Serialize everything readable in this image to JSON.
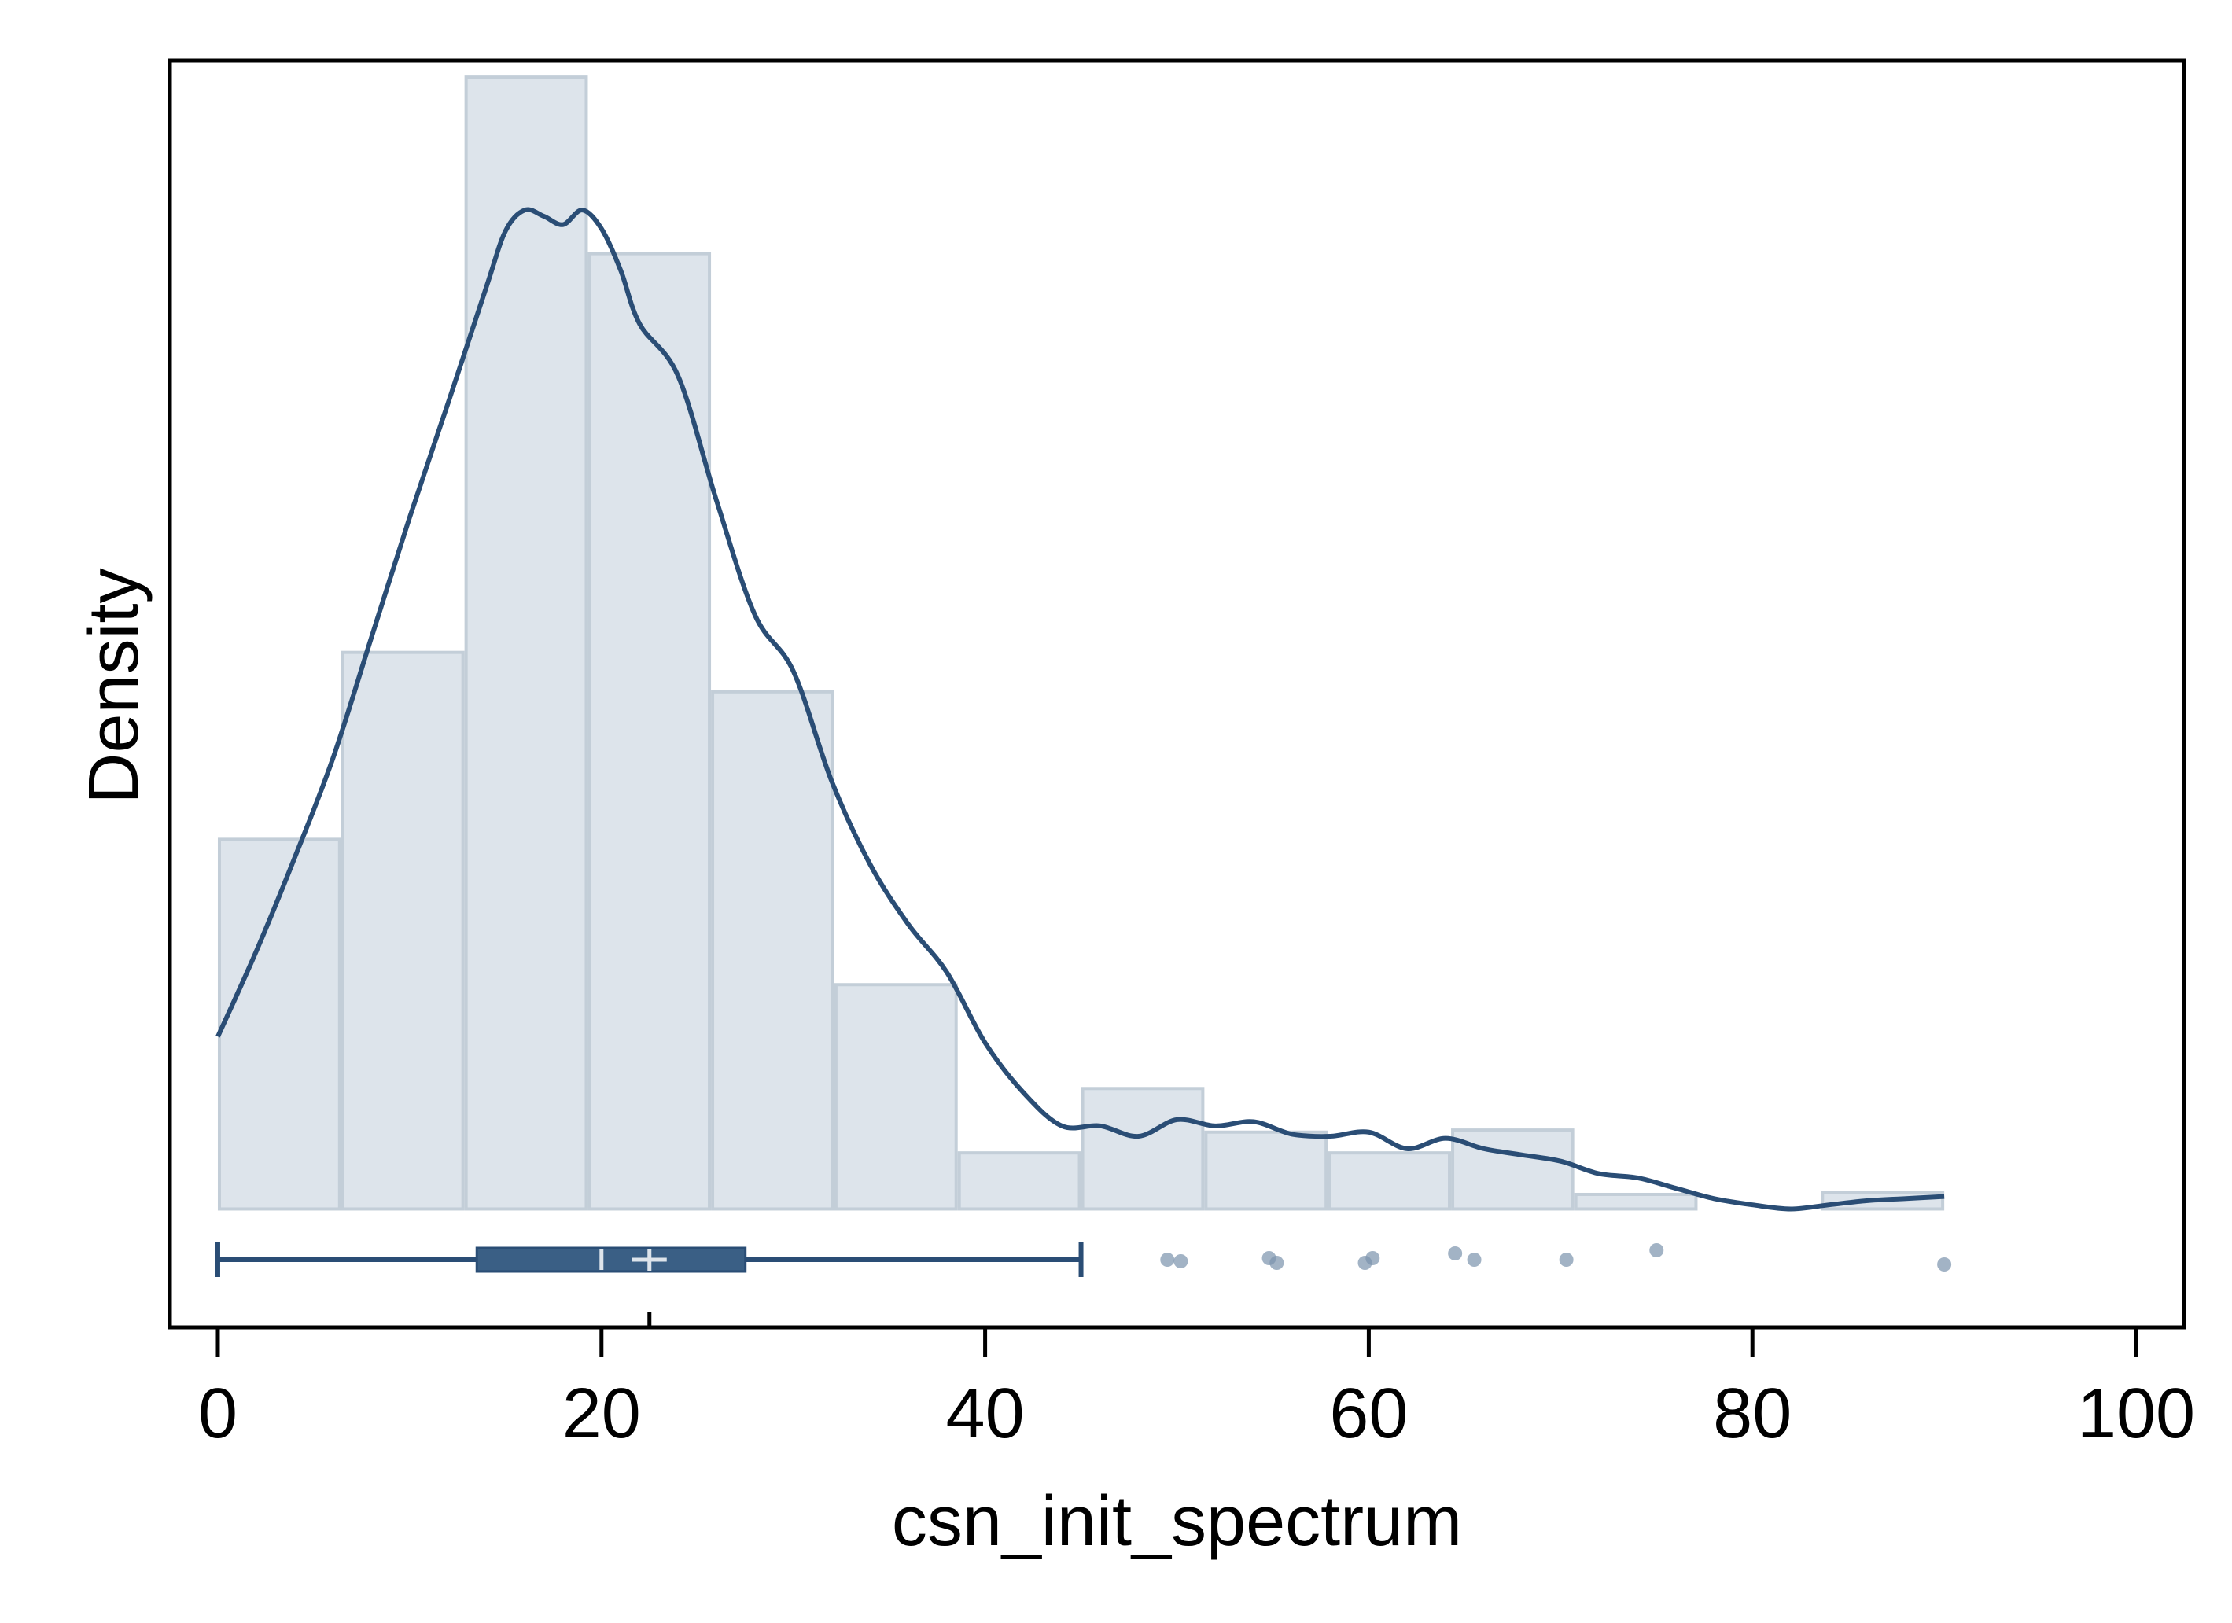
{
  "chart_data": {
    "type": "bar",
    "title": "",
    "xlabel": "csn_init_spectrum",
    "ylabel": "Density",
    "xlim": [
      -2.5,
      102.5
    ],
    "ylim": [
      -0.0057,
      0.0553
    ],
    "xticks": [
      0,
      20,
      40,
      60,
      80,
      100
    ],
    "xtick_labels": [
      "0",
      "20",
      "40",
      "60",
      "80",
      "100"
    ],
    "grid": false,
    "legend": "none",
    "histogram": {
      "bin_edges": [
        0,
        6.43,
        12.86,
        19.29,
        25.71,
        32.14,
        38.57,
        45.0,
        51.43,
        57.86,
        64.29,
        70.71,
        77.14,
        83.57,
        90.0
      ],
      "densities": [
        0.0178,
        0.0268,
        0.0545,
        0.046,
        0.0249,
        0.0108,
        0.0027,
        0.0058,
        0.0037,
        0.0027,
        0.0038,
        0.0007,
        0.0,
        0.0008
      ],
      "fill_color": "#dde4eb",
      "edge_color": "#c3ced8"
    },
    "kde": {
      "color": "#2a4d75",
      "x": [
        0,
        2,
        4,
        6,
        8,
        10,
        12,
        14,
        15,
        16,
        17,
        18,
        19,
        20,
        21,
        22,
        24,
        26,
        28,
        30,
        32,
        34,
        36,
        38,
        40,
        42,
        44,
        46,
        48,
        50,
        52,
        54,
        56,
        58,
        60,
        62,
        64,
        66,
        68,
        70,
        72,
        74,
        76,
        78,
        80,
        82,
        84,
        86,
        88,
        90
      ],
      "y": [
        0.0083,
        0.0124,
        0.0169,
        0.0217,
        0.0275,
        0.0333,
        0.0388,
        0.0444,
        0.0471,
        0.0481,
        0.0478,
        0.0474,
        0.0481,
        0.0472,
        0.0452,
        0.0426,
        0.0401,
        0.0341,
        0.0286,
        0.0259,
        0.0206,
        0.0166,
        0.0137,
        0.0114,
        0.008,
        0.0056,
        0.004,
        0.004,
        0.0035,
        0.0043,
        0.004,
        0.0042,
        0.0036,
        0.0035,
        0.0037,
        0.0029,
        0.0034,
        0.0029,
        0.0026,
        0.0023,
        0.0017,
        0.0015,
        0.001,
        0.0005,
        0.0002,
        0.0,
        0.0002,
        0.0004,
        0.0005,
        0.0006
      ]
    },
    "boxplot": {
      "color": "#3a5f85",
      "whisker_low": 0,
      "q1": 13.5,
      "median": 20,
      "mean": 22.5,
      "q3": 27.5,
      "whisker_high": 45,
      "outliers": [
        49.5,
        50.2,
        54.8,
        55.2,
        59.8,
        60.2,
        64.5,
        65.5,
        70.3,
        75.0,
        90.0
      ],
      "outlier_color": "#7a93ad"
    }
  }
}
